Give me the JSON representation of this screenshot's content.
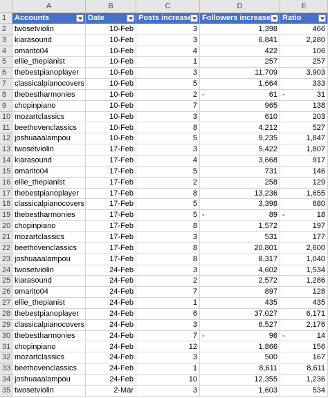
{
  "column_letters": [
    "A",
    "B",
    "C",
    "D",
    "E"
  ],
  "header": {
    "row_number": "1",
    "cells": [
      "Accounts",
      "Date",
      "Posts increased",
      "Followers increased",
      "Ratio"
    ]
  },
  "rows": [
    {
      "number": "2",
      "cells": [
        "twosetviolin",
        "10-Feb",
        "3",
        "1,398",
        "466"
      ]
    },
    {
      "number": "3",
      "cells": [
        "kiarasound",
        "10-Feb",
        "3",
        "6,841",
        "2,280"
      ]
    },
    {
      "number": "4",
      "cells": [
        "omarito04",
        "10-Feb",
        "4",
        "422",
        "106"
      ]
    },
    {
      "number": "5",
      "cells": [
        "ellie_thepianist",
        "10-Feb",
        "1",
        "257",
        "257"
      ]
    },
    {
      "number": "6",
      "cells": [
        "thebestpianoplayer",
        "10-Feb",
        "3",
        "11,709",
        "3,903"
      ]
    },
    {
      "number": "7",
      "cells": [
        "classicalpianocovers",
        "10-Feb",
        "5",
        "1,664",
        "333"
      ]
    },
    {
      "number": "8",
      "cells": [
        "thebestharmonies",
        "10-Feb",
        "2",
        {
          "sign": "-",
          "amount": "61"
        },
        {
          "sign": "-",
          "amount": "31"
        }
      ]
    },
    {
      "number": "9",
      "cells": [
        "chopinpiano",
        "10-Feb",
        "7",
        "965",
        "138"
      ]
    },
    {
      "number": "10",
      "cells": [
        "mozartclassics",
        "10-Feb",
        "3",
        "610",
        "203"
      ]
    },
    {
      "number": "11",
      "cells": [
        "beethovenclassics",
        "10-Feb",
        "8",
        "4,212",
        "527"
      ]
    },
    {
      "number": "12",
      "cells": [
        "joshuaaalampou",
        "10-Feb",
        "5",
        "9,235",
        "1,847"
      ]
    },
    {
      "number": "13",
      "cells": [
        "twosetviolin",
        "17-Feb",
        "3",
        "5,422",
        "1,807"
      ]
    },
    {
      "number": "14",
      "cells": [
        "kiarasound",
        "17-Feb",
        "4",
        "3,668",
        "917"
      ]
    },
    {
      "number": "15",
      "cells": [
        "omarito04",
        "17-Feb",
        "5",
        "731",
        "146"
      ]
    },
    {
      "number": "16",
      "cells": [
        "ellie_thepianist",
        "17-Feb",
        "2",
        "258",
        "129"
      ]
    },
    {
      "number": "17",
      "cells": [
        "thebestpianoplayer",
        "17-Feb",
        "8",
        "13,236",
        "1,655"
      ]
    },
    {
      "number": "18",
      "cells": [
        "classicalpianocovers",
        "17-Feb",
        "5",
        "3,398",
        "680"
      ]
    },
    {
      "number": "19",
      "cells": [
        "thebestharmonies",
        "17-Feb",
        "5",
        {
          "sign": "-",
          "amount": "89"
        },
        {
          "sign": "-",
          "amount": "18"
        }
      ]
    },
    {
      "number": "20",
      "cells": [
        "chopinpiano",
        "17-Feb",
        "8",
        "1,572",
        "197"
      ]
    },
    {
      "number": "21",
      "cells": [
        "mozartclassics",
        "17-Feb",
        "3",
        "531",
        "177"
      ]
    },
    {
      "number": "22",
      "cells": [
        "beethovenclassics",
        "17-Feb",
        "8",
        "20,801",
        "2,600"
      ]
    },
    {
      "number": "23",
      "cells": [
        "joshuaaalampou",
        "17-Feb",
        "8",
        "8,317",
        "1,040"
      ]
    },
    {
      "number": "24",
      "cells": [
        "twosetviolin",
        "24-Feb",
        "3",
        "4,602",
        "1,534"
      ]
    },
    {
      "number": "25",
      "cells": [
        "kiarasound",
        "24-Feb",
        "2",
        "2,572",
        "1,286"
      ]
    },
    {
      "number": "26",
      "cells": [
        "omarito04",
        "24-Feb",
        "7",
        "897",
        "128"
      ]
    },
    {
      "number": "27",
      "cells": [
        "ellie_thepianist",
        "24-Feb",
        "1",
        "435",
        "435"
      ]
    },
    {
      "number": "28",
      "cells": [
        "thebestpianoplayer",
        "24-Feb",
        "6",
        "37,027",
        "6,171"
      ]
    },
    {
      "number": "29",
      "cells": [
        "classicalpianocovers",
        "24-Feb",
        "3",
        "6,527",
        "2,176"
      ]
    },
    {
      "number": "30",
      "cells": [
        "thebestharmonies",
        "24-Feb",
        "7",
        {
          "sign": "-",
          "amount": "96"
        },
        {
          "sign": "-",
          "amount": "14"
        }
      ]
    },
    {
      "number": "31",
      "cells": [
        "chopinpiano",
        "24-Feb",
        "12",
        "1,866",
        "156"
      ]
    },
    {
      "number": "32",
      "cells": [
        "mozartclassics",
        "24-Feb",
        "3",
        "500",
        "167"
      ]
    },
    {
      "number": "33",
      "cells": [
        "beethovenclassics",
        "24-Feb",
        "1",
        "8,611",
        "8,611"
      ]
    },
    {
      "number": "34",
      "cells": [
        "joshuaaalampou",
        "24-Feb",
        "10",
        "12,355",
        "1,236"
      ]
    },
    {
      "number": "35",
      "cells": [
        "twosetviolin",
        "2-Mar",
        "3",
        "1,603",
        "534"
      ]
    }
  ]
}
